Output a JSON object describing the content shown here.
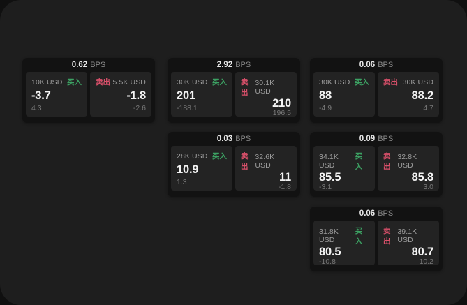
{
  "labels": {
    "bps": "BPS",
    "buy": "买入",
    "sell": "卖出"
  },
  "colors": {
    "window_bg": "#1e1e1e",
    "card_bg": "#121212",
    "tile_bg": "#232323",
    "buy_accent": "#3CA263",
    "sell_accent": "#D9506A"
  },
  "cards": [
    {
      "bps": "0.62",
      "buy": {
        "amount": "10K USD",
        "main": "-3.7",
        "sub": "4.3"
      },
      "sell": {
        "amount": "5.5K USD",
        "main": "-1.8",
        "sub": "-2.6"
      }
    },
    {
      "bps": "2.92",
      "buy": {
        "amount": "30K USD",
        "main": "201",
        "sub": "-188.1"
      },
      "sell": {
        "amount": "30.1K USD",
        "main": "210",
        "sub": "196.5"
      }
    },
    {
      "bps": "0.06",
      "buy": {
        "amount": "30K USD",
        "main": "88",
        "sub": "-4.9"
      },
      "sell": {
        "amount": "30K USD",
        "main": "88.2",
        "sub": "4.7"
      }
    },
    {
      "bps": "0.03",
      "buy": {
        "amount": "28K USD",
        "main": "10.9",
        "sub": "1.3"
      },
      "sell": {
        "amount": "32.6K USD",
        "main": "11",
        "sub": "-1.8"
      }
    },
    {
      "bps": "0.09",
      "buy": {
        "amount": "34.1K USD",
        "main": "85.5",
        "sub": "-3.1"
      },
      "sell": {
        "amount": "32.8K USD",
        "main": "85.8",
        "sub": "3.0"
      }
    },
    {
      "bps": "0.06",
      "buy": {
        "amount": "31.8K USD",
        "main": "80.5",
        "sub": "-10.8"
      },
      "sell": {
        "amount": "39.1K USD",
        "main": "80.7",
        "sub": "10.2"
      }
    }
  ]
}
